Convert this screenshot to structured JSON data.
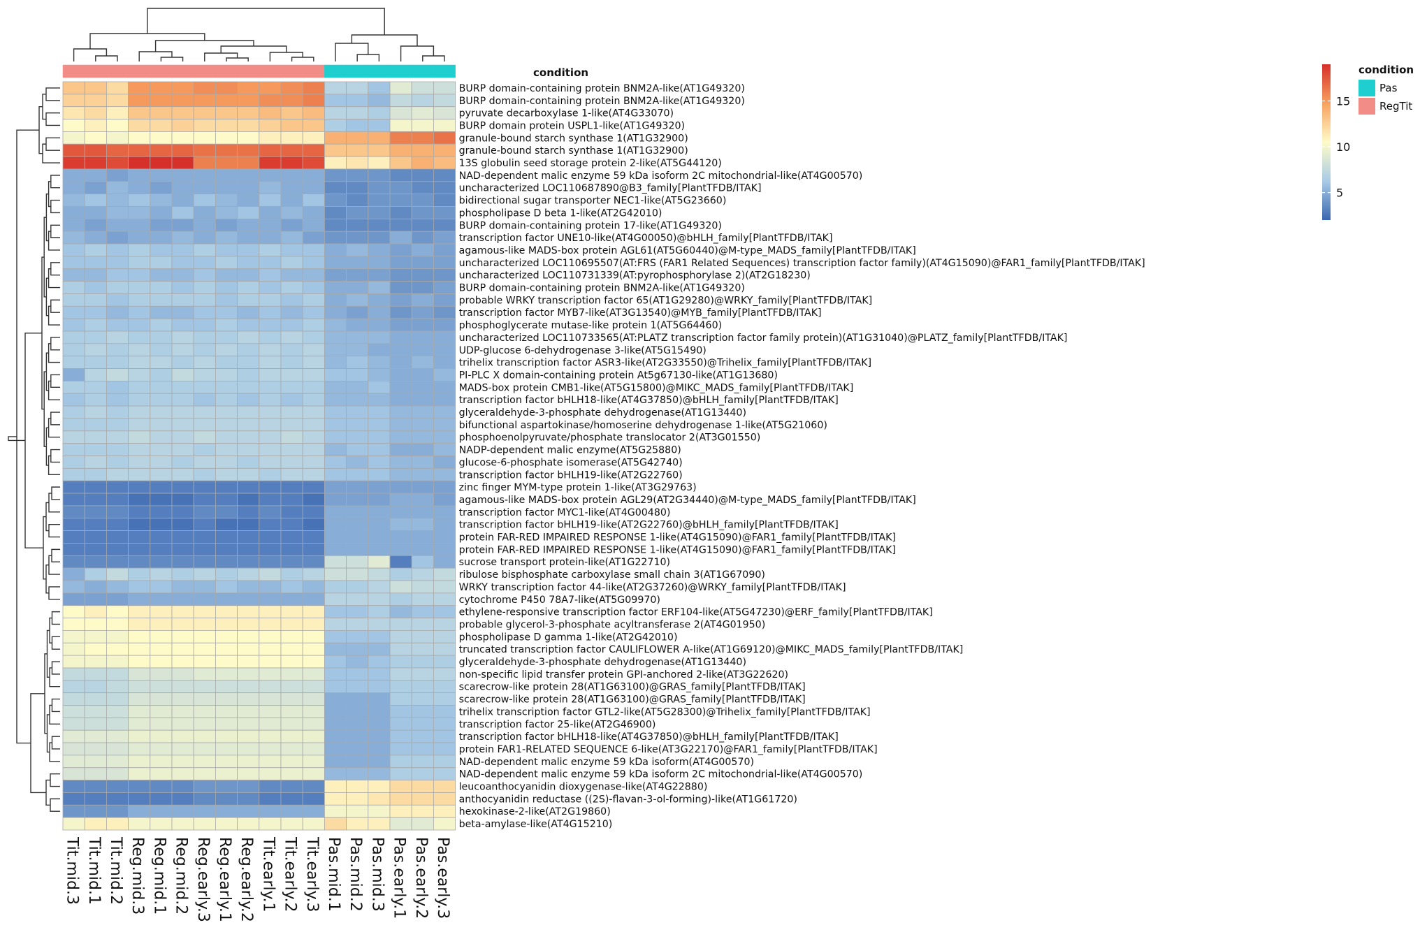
{
  "chart_data": {
    "type": "heatmap",
    "title": "",
    "annotation_title": "condition",
    "legend": {
      "title": "condition",
      "items": [
        {
          "label": "Pas",
          "color": "#1fcfcf"
        },
        {
          "label": "RegTit",
          "color": "#f28c86"
        }
      ]
    },
    "colorbar": {
      "ticks": [
        5,
        10,
        15
      ],
      "range": [
        2,
        19
      ],
      "colors": [
        "#3a66b0",
        "#a9cbe6",
        "#fffbc8",
        "#f7a15f",
        "#d6302a"
      ]
    },
    "columns": [
      "Tit.mid.3",
      "Tit.mid.1",
      "Tit.mid.2",
      "Reg.mid.3",
      "Reg.mid.1",
      "Reg.mid.2",
      "Reg.early.3",
      "Reg.early.1",
      "Reg.early.2",
      "Tit.early.1",
      "Tit.early.2",
      "Tit.early.3",
      "Pas.mid.1",
      "Pas.mid.2",
      "Pas.mid.3",
      "Pas.early.1",
      "Pas.early.2",
      "Pas.early.3"
    ],
    "column_condition": [
      "RegTit",
      "RegTit",
      "RegTit",
      "RegTit",
      "RegTit",
      "RegTit",
      "RegTit",
      "RegTit",
      "RegTit",
      "RegTit",
      "RegTit",
      "RegTit",
      "Pas",
      "Pas",
      "Pas",
      "Pas",
      "Pas",
      "Pas"
    ],
    "rows": [
      "BURP domain-containing protein BNM2A-like(AT1G49320)",
      "BURP domain-containing protein BNM2A-like(AT1G49320)",
      "pyruvate decarboxylase 1-like(AT4G33070)",
      "BURP domain protein USPL1-like(AT1G49320)",
      "granule-bound starch synthase 1(AT1G32900)",
      "granule-bound starch synthase 1(AT1G32900)",
      "13S globulin seed storage protein 2-like(AT5G44120)",
      "NAD-dependent malic enzyme 59 kDa isoform 2C mitochondrial-like(AT4G00570)",
      "uncharacterized LOC110687890@B3_family[PlantTFDB/ITAK]",
      "bidirectional sugar transporter NEC1-like(AT5G23660)",
      "phospholipase D beta 1-like(AT2G42010)",
      "BURP domain-containing protein 17-like(AT1G49320)",
      "transcription factor UNE10-like(AT4G00050)@bHLH_family[PlantTFDB/ITAK]",
      "agamous-like MADS-box protein AGL61(AT5G60440)@M-type_MADS_family[PlantTFDB/ITAK]",
      "uncharacterized LOC110695507(AT:FRS (FAR1 Related Sequences) transcription factor family)(AT4G15090)@FAR1_family[PlantTFDB/ITAK]",
      "uncharacterized LOC110731339(AT:pyrophosphorylase 2)(AT2G18230)",
      "BURP domain-containing protein BNM2A-like(AT1G49320)",
      "probable WRKY transcription factor 65(AT1G29280)@WRKY_family[PlantTFDB/ITAK]",
      "transcription factor MYB7-like(AT3G13540)@MYB_family[PlantTFDB/ITAK]",
      "phosphoglycerate mutase-like protein 1(AT5G64460)",
      "uncharacterized LOC110733565(AT:PLATZ transcription factor family protein)(AT1G31040)@PLATZ_family[PlantTFDB/ITAK]",
      "UDP-glucose 6-dehydrogenase 3-like(AT5G15490)",
      "trihelix transcription factor ASR3-like(AT2G33550)@Trihelix_family[PlantTFDB/ITAK]",
      "PI-PLC X domain-containing protein At5g67130-like(AT1G13680)",
      "MADS-box protein CMB1-like(AT5G15800)@MIKC_MADS_family[PlantTFDB/ITAK]",
      "transcription factor bHLH18-like(AT4G37850)@bHLH_family[PlantTFDB/ITAK]",
      "glyceraldehyde-3-phosphate dehydrogenase(AT1G13440)",
      "bifunctional aspartokinase/homoserine dehydrogenase 1-like(AT5G21060)",
      "phosphoenolpyruvate/phosphate translocator 2(AT3G01550)",
      "NADP-dependent malic enzyme(AT5G25880)",
      "glucose-6-phosphate isomerase(AT5G42740)",
      "transcription factor bHLH19-like(AT2G22760)",
      "zinc finger MYM-type protein 1-like(AT3G29763)",
      "agamous-like MADS-box protein AGL29(AT2G34440)@M-type_MADS_family[PlantTFDB/ITAK]",
      "transcription factor MYC1-like(AT4G00480)",
      "transcription factor bHLH19-like(AT2G22760)@bHLH_family[PlantTFDB/ITAK]",
      "protein FAR-RED IMPAIRED RESPONSE 1-like(AT4G15090)@FAR1_family[PlantTFDB/ITAK]",
      "protein FAR-RED IMPAIRED RESPONSE 1-like(AT4G15090)@FAR1_family[PlantTFDB/ITAK]",
      "sucrose transport protein-like(AT1G22710)",
      "ribulose bisphosphate carboxylase small chain 3(AT1G67090)",
      "WRKY transcription factor 44-like(AT2G37260)@WRKY_family[PlantTFDB/ITAK]",
      "cytochrome P450 78A7-like(AT5G09970)",
      "ethylene-responsive transcription factor ERF104-like(AT5G47230)@ERF_family[PlantTFDB/ITAK]",
      "probable glycerol-3-phosphate acyltransferase 2(AT4G01950)",
      "phospholipase D gamma 1-like(AT2G42010)",
      "truncated transcription factor CAULIFLOWER A-like(AT1G69120)@MIKC_MADS_family[PlantTFDB/ITAK]",
      "glyceraldehyde-3-phosphate dehydrogenase(AT1G13440)",
      "non-specific lipid transfer protein GPI-anchored 2-like(AT3G22620)",
      "scarecrow-like protein 28(AT1G63100)@GRAS_family[PlantTFDB/ITAK]",
      "scarecrow-like protein 28(AT1G63100)@GRAS_family[PlantTFDB/ITAK]",
      "trihelix transcription factor GTL2-like(AT5G28300)@Trihelix_family[PlantTFDB/ITAK]",
      "transcription factor 25-like(AT2G46900)",
      "transcription factor bHLH18-like(AT4G37850)@bHLH_family[PlantTFDB/ITAK]",
      "protein FAR1-RELATED SEQUENCE 6-like(AT3G22170)@FAR1_family[PlantTFDB/ITAK]",
      "NAD-dependent malic enzyme 59 kDa isoform(AT4G00570)",
      "NAD-dependent malic enzyme 59 kDa isoform 2C mitochondrial-like(AT4G00570)",
      "leucoanthocyanidin dioxygenase-like(AT4G22880)",
      "anthocyanidin reductase ((2S)-flavan-3-ol-forming)-like(AT1G61720)",
      "hexokinase-2-like(AT2G19860)",
      "beta-amylase-like(AT4G15210)"
    ],
    "row_values": [
      [
        13,
        13,
        12,
        15,
        15,
        15,
        15.5,
        15.5,
        15,
        15,
        15.5,
        16,
        7,
        7,
        6,
        9,
        8,
        8
      ],
      [
        12.5,
        12.5,
        12,
        15,
        15,
        15,
        15,
        15,
        15,
        15.5,
        15.5,
        16,
        6,
        6,
        5.5,
        7.5,
        7,
        7.5
      ],
      [
        11.5,
        12,
        11,
        13,
        13,
        13,
        13,
        13,
        13,
        13.5,
        13,
        13.5,
        7,
        7,
        6.5,
        8.5,
        9,
        8.5
      ],
      [
        10.5,
        11,
        10.5,
        12,
        12,
        12.5,
        12,
        12,
        12,
        12.5,
        13,
        13,
        6.5,
        6,
        6,
        10,
        10,
        10
      ],
      [
        10,
        10.5,
        10,
        10.5,
        10.5,
        10.5,
        10.5,
        10.5,
        10.5,
        11,
        11,
        11,
        14,
        14,
        14,
        16,
        16,
        16.5
      ],
      [
        17.5,
        17.5,
        17,
        17,
        17,
        17,
        16.5,
        16.5,
        16.5,
        17,
        17,
        17,
        13,
        13,
        13,
        14,
        14,
        14
      ],
      [
        18.5,
        18.5,
        18,
        19,
        19,
        19,
        16,
        16,
        16,
        18.5,
        18.5,
        18,
        11,
        11.5,
        11,
        13,
        14,
        13.5
      ],
      [
        5,
        5,
        4.5,
        5,
        5,
        5,
        5,
        5,
        5,
        5,
        5,
        5,
        4,
        4,
        4,
        3.5,
        3.5,
        3.5
      ],
      [
        5,
        4.5,
        5.5,
        5,
        4.5,
        5,
        5,
        5,
        5,
        5.5,
        5,
        5,
        3.5,
        3.5,
        4,
        4,
        3.5,
        3.5
      ],
      [
        5.5,
        6,
        5.5,
        6,
        5.5,
        5,
        6,
        5.5,
        5,
        6,
        5,
        6,
        4,
        3.5,
        4,
        4,
        4,
        3.5
      ],
      [
        5,
        5,
        5.5,
        5.5,
        5,
        6,
        5,
        5.5,
        6,
        5,
        5.5,
        5,
        3.5,
        4,
        4,
        3.5,
        4,
        4
      ],
      [
        5,
        4.5,
        5,
        5,
        4.5,
        4.5,
        5,
        4.5,
        5,
        5,
        4.5,
        5,
        3.5,
        3.5,
        3.5,
        3.5,
        3.5,
        3.5
      ],
      [
        5.5,
        5,
        4.5,
        5,
        5,
        5.5,
        5,
        5.5,
        5,
        5,
        5.5,
        4.5,
        4,
        4,
        4,
        5,
        4,
        4.5
      ],
      [
        6,
        6.5,
        6,
        6.5,
        6,
        6,
        6.5,
        6,
        6,
        6.5,
        6,
        6,
        5,
        5.5,
        5,
        4.5,
        5,
        4.5
      ],
      [
        6,
        6,
        6,
        6.5,
        6.5,
        6,
        6,
        6.5,
        6,
        6,
        6.5,
        6,
        5,
        5,
        5,
        4.5,
        4.5,
        4.5
      ],
      [
        5.5,
        5.5,
        6,
        6,
        5.5,
        5.5,
        6,
        5.5,
        5.5,
        6,
        5.5,
        5.5,
        4.5,
        4.5,
        4.5,
        4,
        4,
        4
      ],
      [
        6.5,
        6,
        6.5,
        6.5,
        6.5,
        6,
        6.5,
        6,
        6.5,
        6,
        6.5,
        6,
        5,
        5,
        5.5,
        4,
        4,
        4.5
      ],
      [
        6.5,
        6.5,
        6,
        6.5,
        6.5,
        6.5,
        6.5,
        6,
        6.5,
        6.5,
        6,
        6.5,
        5,
        5.5,
        5,
        4.5,
        5,
        4.5
      ],
      [
        6,
        6,
        5.5,
        6,
        5.5,
        5.5,
        6,
        6,
        5.5,
        6,
        5.5,
        6,
        5,
        4.5,
        5,
        4,
        4.5,
        4
      ],
      [
        6,
        6.5,
        6,
        6,
        6.5,
        6,
        6,
        6.5,
        6,
        6,
        6,
        6.5,
        5.5,
        5,
        5,
        4.5,
        4.5,
        4.5
      ],
      [
        6.5,
        6.5,
        7,
        6.5,
        6.5,
        7,
        6.5,
        6.5,
        7,
        6.5,
        7,
        6.5,
        5.5,
        5.5,
        5.5,
        5,
        5,
        5
      ],
      [
        6.5,
        7,
        6.5,
        7,
        6.5,
        7,
        6.5,
        7,
        6.5,
        7,
        6.5,
        7,
        5.5,
        5.5,
        5,
        5,
        5,
        5
      ],
      [
        6.5,
        6.5,
        6.5,
        7,
        7,
        6.5,
        7,
        6.5,
        6.5,
        7,
        6.5,
        7,
        5.5,
        6,
        5.5,
        5,
        5.5,
        5
      ],
      [
        5,
        7,
        7.5,
        7,
        6.5,
        7.5,
        7,
        7,
        6.5,
        7,
        7,
        7,
        6,
        6,
        5.5,
        5,
        5,
        5.5
      ],
      [
        6.5,
        6.5,
        6,
        6.5,
        6.5,
        6.5,
        6.5,
        6.5,
        6.5,
        6.5,
        6.5,
        6.5,
        5.5,
        5.5,
        6,
        5,
        5,
        5
      ],
      [
        6,
        6.5,
        6,
        6.5,
        6.5,
        6.5,
        6,
        6.5,
        6,
        6.5,
        6,
        6.5,
        5.5,
        5.5,
        5.5,
        5,
        5,
        5
      ],
      [
        6.5,
        7,
        6.5,
        7,
        7,
        7,
        7,
        7,
        7,
        7,
        7,
        7,
        6,
        6,
        6,
        5.5,
        5.5,
        5.5
      ],
      [
        6.5,
        6.5,
        6.5,
        7,
        7,
        7,
        7,
        7,
        7,
        7,
        7,
        7,
        6,
        6,
        6,
        5.5,
        5.5,
        5.5
      ],
      [
        7,
        7,
        7,
        7.5,
        7,
        7,
        7.5,
        7,
        7,
        7,
        7.5,
        7,
        6,
        6,
        6,
        5.5,
        5.5,
        5.5
      ],
      [
        6.5,
        6.5,
        6.5,
        7,
        7,
        7,
        6.5,
        7,
        7,
        7,
        7,
        7,
        5.5,
        6,
        6,
        5,
        5,
        5.5
      ],
      [
        6.5,
        7,
        6.5,
        7,
        7,
        6.5,
        7,
        7,
        6.5,
        7,
        7,
        7,
        6,
        5.5,
        6,
        5.5,
        5.5,
        5
      ],
      [
        6.5,
        6.5,
        7,
        7,
        7,
        7,
        6.5,
        7,
        7,
        6.5,
        7,
        7,
        6,
        6,
        6,
        5.5,
        5.5,
        5.5
      ],
      [
        3,
        3,
        3,
        3,
        3,
        3,
        3,
        3,
        3,
        3,
        3,
        3,
        4.5,
        4.5,
        4.5,
        4.5,
        4.5,
        4.5
      ],
      [
        3,
        3,
        3,
        2.5,
        2.5,
        2.5,
        3,
        3,
        2.5,
        3,
        3,
        2.5,
        4.5,
        4.5,
        4.5,
        5,
        5,
        4.5
      ],
      [
        3.5,
        3.5,
        3.5,
        3,
        3,
        3,
        3.5,
        3.5,
        3,
        3.5,
        3,
        3,
        5,
        5,
        5,
        5,
        5,
        5
      ],
      [
        3,
        3,
        3,
        2.5,
        2.5,
        2.5,
        3,
        2.5,
        2.5,
        3,
        3,
        2.5,
        5,
        5,
        5,
        5.5,
        5.5,
        5
      ],
      [
        3,
        3,
        3,
        3,
        3,
        3,
        3,
        3,
        3,
        3,
        3,
        3,
        5,
        5,
        5,
        5,
        5,
        5
      ],
      [
        3,
        3,
        3,
        3,
        3,
        3,
        3,
        3,
        3,
        3,
        3,
        3,
        5,
        5,
        5,
        5,
        5,
        5
      ],
      [
        3.5,
        3.5,
        3.5,
        3.5,
        3.5,
        3.5,
        3.5,
        3.5,
        3.5,
        3.5,
        3.5,
        3.5,
        8,
        8,
        9,
        3,
        6,
        5
      ],
      [
        5,
        6.5,
        7.5,
        6.5,
        7,
        6.5,
        7,
        6.5,
        7,
        7.5,
        6.5,
        7,
        8,
        8,
        7.5,
        6.5,
        7,
        7.5
      ],
      [
        5.5,
        5,
        5.5,
        6,
        6,
        5.5,
        5.5,
        6,
        5.5,
        5.5,
        6,
        5.5,
        6.5,
        6.5,
        7,
        8,
        7.5,
        7.5
      ],
      [
        4.5,
        4.5,
        4.5,
        5,
        5,
        5,
        5,
        5,
        5,
        5,
        5,
        5,
        7,
        7,
        7,
        6.5,
        7,
        7
      ],
      [
        10.5,
        11,
        10.5,
        11,
        11,
        11,
        11,
        11,
        11,
        11,
        11,
        11,
        6,
        6,
        6.5,
        5.5,
        6,
        6
      ],
      [
        10.5,
        10.5,
        10.5,
        11,
        11,
        11,
        11,
        11,
        11,
        11,
        11,
        11,
        7,
        7,
        7,
        7,
        7,
        7
      ],
      [
        10,
        10,
        10,
        10.5,
        10.5,
        10.5,
        10.5,
        10.5,
        10.5,
        10.5,
        10.5,
        10.5,
        6,
        6,
        6,
        7,
        7,
        7
      ],
      [
        10,
        10.5,
        10.5,
        10.5,
        10.5,
        10.5,
        10.5,
        10.5,
        10.5,
        10.5,
        10.5,
        10.5,
        5.5,
        5.5,
        5.5,
        7,
        7,
        7
      ],
      [
        10,
        10,
        10,
        10.5,
        10.5,
        10.5,
        10.5,
        10.5,
        10.5,
        10.5,
        10.5,
        10.5,
        6,
        5.5,
        6,
        6.5,
        6.5,
        6.5
      ],
      [
        7.5,
        7.5,
        7.5,
        8.5,
        8.5,
        8.5,
        9,
        9,
        9,
        9,
        9,
        9,
        6,
        6,
        6,
        7,
        7,
        7
      ],
      [
        7,
        7,
        7.5,
        8,
        8,
        8,
        8,
        8,
        8,
        8,
        8,
        8,
        6,
        6,
        6,
        6.5,
        6.5,
        6.5
      ],
      [
        7.5,
        7.5,
        7.5,
        8.5,
        8.5,
        8.5,
        8.5,
        8.5,
        8.5,
        8.5,
        8.5,
        8.5,
        5,
        5,
        5,
        6.5,
        6.5,
        6.5
      ],
      [
        8,
        8,
        8,
        9,
        9,
        9,
        9,
        9,
        9,
        9,
        9,
        9,
        5,
        5,
        5,
        6,
        6,
        6
      ],
      [
        8,
        8,
        8,
        9,
        9,
        9,
        9,
        9,
        9,
        9,
        9,
        9,
        5,
        5,
        5,
        6,
        6,
        6
      ],
      [
        9,
        9,
        9,
        9.5,
        9.5,
        9.5,
        9.5,
        9.5,
        9.5,
        9.5,
        9.5,
        9.5,
        5,
        5,
        5,
        6,
        6,
        6
      ],
      [
        8.5,
        8.5,
        8.5,
        9,
        9,
        9,
        9,
        9,
        9,
        9,
        9,
        9,
        5,
        5,
        5,
        6,
        6,
        6
      ],
      [
        9,
        9,
        9,
        9.5,
        9.5,
        9.5,
        9.5,
        9.5,
        9.5,
        9.5,
        9.5,
        9.5,
        5,
        5,
        5,
        6.5,
        6.5,
        6.5
      ],
      [
        8.5,
        8.5,
        8.5,
        9.5,
        9.5,
        9.5,
        9.5,
        9.5,
        9.5,
        9.5,
        9.5,
        9.5,
        5.5,
        5.5,
        5.5,
        6.5,
        6.5,
        6.5
      ],
      [
        3.5,
        3.5,
        3.5,
        3.5,
        3.5,
        3.5,
        4,
        4,
        4,
        3.5,
        3.5,
        3.5,
        11,
        11,
        11,
        12,
        12,
        12
      ],
      [
        3,
        3,
        3,
        3,
        3,
        3,
        3.5,
        3.5,
        3.5,
        3,
        3,
        3,
        11,
        11,
        11.5,
        12,
        12,
        12
      ],
      [
        4,
        4,
        4,
        5,
        5,
        5,
        5,
        5,
        5,
        5,
        5,
        5,
        10,
        10,
        10,
        11,
        11,
        11
      ],
      [
        10,
        11,
        11,
        10,
        10,
        10,
        10,
        10,
        10,
        10,
        10,
        10,
        12,
        11,
        11,
        9,
        9,
        10
      ]
    ]
  }
}
